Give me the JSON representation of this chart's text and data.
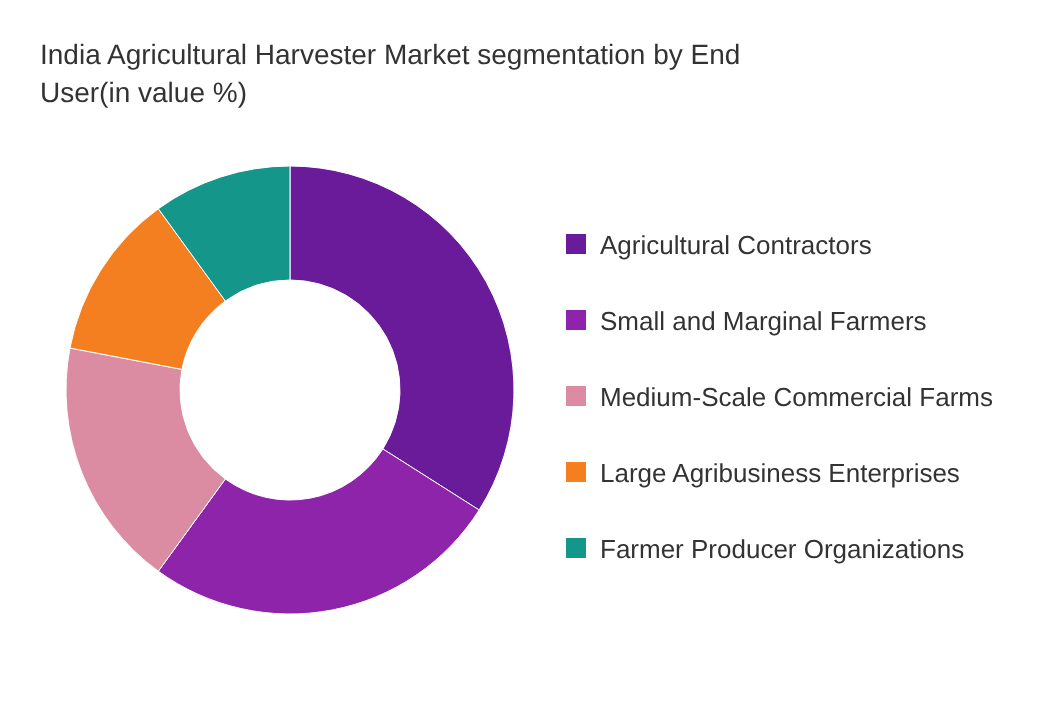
{
  "chart_data": {
    "type": "donut",
    "title": "India Agricultural Harvester Market segmentation by End User(in value %)",
    "categories": [
      "Agricultural Contractors",
      "Small and Marginal Farmers",
      "Medium-Scale Commercial Farms",
      "Large Agribusiness Enterprises",
      "Farmer Producer Organizations"
    ],
    "values": [
      34,
      26,
      18,
      12,
      10
    ],
    "colors": [
      "#6a1b9a",
      "#8e24aa",
      "#db8ca3",
      "#f47f20",
      "#14968a"
    ],
    "legend": "right"
  }
}
